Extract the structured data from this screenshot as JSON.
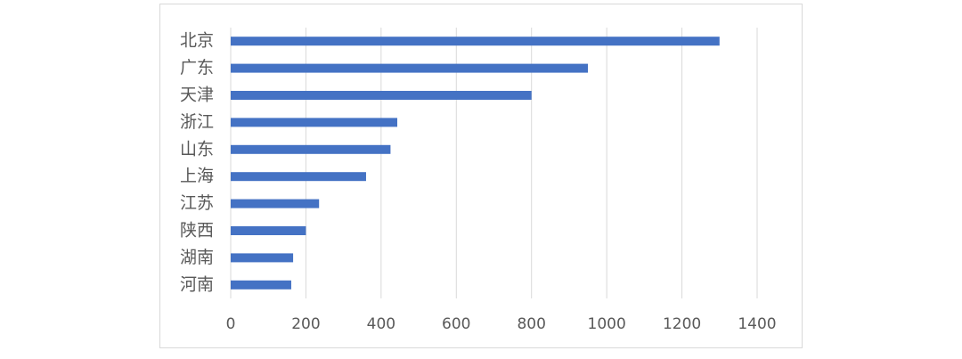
{
  "chart_data": {
    "type": "bar",
    "orientation": "horizontal",
    "categories": [
      "北京",
      "广东",
      "天津",
      "浙江",
      "山东",
      "上海",
      "江苏",
      "陕西",
      "湖南",
      "河南"
    ],
    "values": [
      1300,
      950,
      800,
      443,
      425,
      360,
      235,
      200,
      166,
      161
    ],
    "color": "#4472c4",
    "xlim": [
      0,
      1400
    ],
    "xticks": [
      0,
      200,
      400,
      600,
      800,
      1000,
      1200,
      1400
    ],
    "grid": true
  }
}
